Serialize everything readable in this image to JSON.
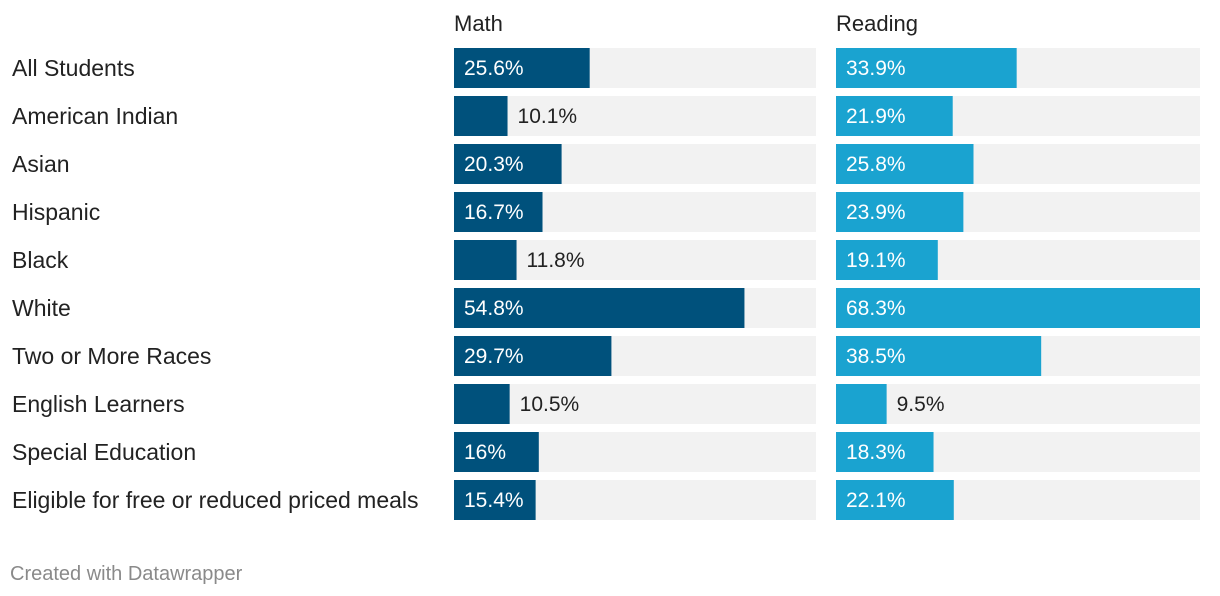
{
  "chart_data": {
    "type": "bar",
    "orientation": "horizontal",
    "categories": [
      "All Students",
      "American Indian",
      "Asian",
      "Hispanic",
      "Black",
      "White",
      "Two or More Races",
      "English Learners",
      "Special Education",
      "Eligible for free or reduced priced meals"
    ],
    "series": [
      {
        "name": "Math",
        "color": "#00517c",
        "values": [
          25.6,
          10.1,
          20.3,
          16.7,
          11.8,
          54.8,
          29.7,
          10.5,
          16,
          15.4
        ],
        "labels": [
          "25.6%",
          "10.1%",
          "20.3%",
          "16.7%",
          "11.8%",
          "54.8%",
          "29.7%",
          "10.5%",
          "16%",
          "15.4%"
        ]
      },
      {
        "name": "Reading",
        "color": "#1aa3d0",
        "values": [
          33.9,
          21.9,
          25.8,
          23.9,
          19.1,
          68.3,
          38.5,
          9.5,
          18.3,
          22.1
        ],
        "labels": [
          "33.9%",
          "21.9%",
          "25.8%",
          "23.9%",
          "19.1%",
          "68.3%",
          "38.5%",
          "9.5%",
          "18.3%",
          "22.1%"
        ]
      }
    ],
    "xlim": [
      0,
      68.3
    ],
    "background_track_color": "#f2f2f2"
  },
  "footer": {
    "credit": "Created with Datawrapper"
  }
}
